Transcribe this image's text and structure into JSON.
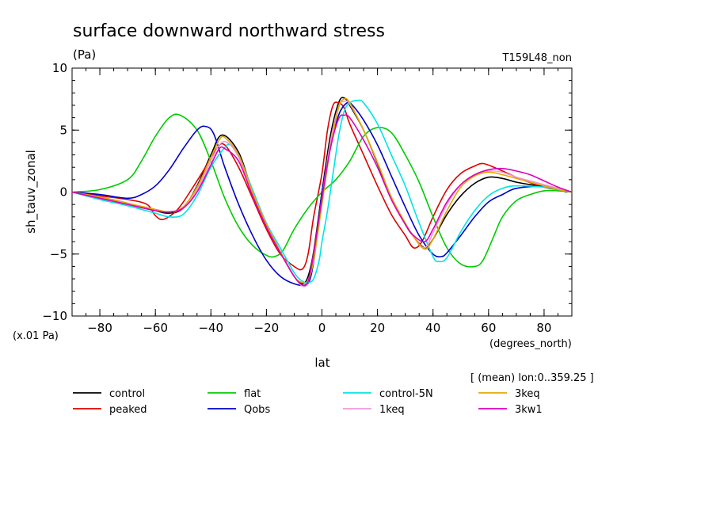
{
  "chart_data": {
    "type": "line",
    "title": "surface downward northward stress",
    "units_label": "(Pa)",
    "run_label": "T159L48_non",
    "ylabel": "sh_tauv_zonal",
    "xlabel": "lat",
    "x_units": "(degrees_north)",
    "y_scale_note": "(x.01 Pa)",
    "mean_note": "[ (mean) lon:0..359.25 ]",
    "xlim": [
      -90,
      90
    ],
    "ylim": [
      -10,
      10
    ],
    "xticks": [
      -80,
      -60,
      -40,
      -20,
      0,
      20,
      40,
      60,
      80
    ],
    "yticks": [
      -10,
      -5,
      0,
      5,
      10
    ],
    "series": [
      {
        "name": "control",
        "color": "#000000",
        "x": [
          -90,
          -80,
          -70,
          -60,
          -55,
          -50,
          -45,
          -40,
          -36,
          -30,
          -25,
          -20,
          -15,
          -10,
          -7,
          -5,
          -3,
          0,
          3,
          6,
          8,
          10,
          15,
          20,
          25,
          30,
          33,
          37,
          40,
          45,
          50,
          55,
          60,
          65,
          70,
          75,
          80,
          85,
          90
        ],
        "y": [
          0,
          -0.4,
          -0.9,
          -1.5,
          -1.7,
          -1.3,
          0.5,
          3.0,
          4.6,
          3.2,
          0,
          -2.6,
          -4.8,
          -6.8,
          -7.4,
          -6.8,
          -4.8,
          0,
          4.5,
          7.2,
          7.6,
          7.0,
          5.0,
          2.3,
          -0.5,
          -2.6,
          -3.6,
          -4.5,
          -3.8,
          -1.8,
          -0.3,
          0.7,
          1.2,
          1.1,
          0.8,
          0.6,
          0.4,
          0.2,
          0
        ]
      },
      {
        "name": "peaked",
        "color": "#dd0000",
        "x": [
          -90,
          -80,
          -70,
          -63,
          -60,
          -57,
          -52,
          -47,
          -42,
          -38,
          -35,
          -30,
          -25,
          -20,
          -15,
          -10,
          -7,
          -5,
          -3,
          0,
          2,
          4,
          6,
          8,
          10,
          15,
          20,
          25,
          30,
          33,
          36,
          40,
          45,
          50,
          55,
          58,
          62,
          67,
          72,
          80,
          85,
          90
        ],
        "y": [
          0,
          -0.3,
          -0.6,
          -1.0,
          -1.9,
          -2.2,
          -1.4,
          0.2,
          2.0,
          3.5,
          3.8,
          2.0,
          -0.5,
          -3.0,
          -5.0,
          -6.0,
          -6.2,
          -5.0,
          -2.0,
          1.5,
          5.0,
          7.0,
          7.2,
          6.8,
          5.5,
          3.0,
          0.5,
          -1.8,
          -3.5,
          -4.5,
          -4.0,
          -2.0,
          0.2,
          1.5,
          2.1,
          2.3,
          2.0,
          1.5,
          1.0,
          0.4,
          0.2,
          0
        ]
      },
      {
        "name": "flat",
        "color": "#00cc00",
        "x": [
          -90,
          -80,
          -70,
          -65,
          -60,
          -55,
          -51,
          -45,
          -40,
          -35,
          -30,
          -25,
          -20,
          -17,
          -14,
          -10,
          -5,
          0,
          5,
          10,
          15,
          20,
          25,
          30,
          35,
          40,
          45,
          50,
          55,
          58,
          62,
          65,
          70,
          75,
          80,
          85,
          90
        ],
        "y": [
          0,
          0.2,
          1.0,
          2.5,
          4.5,
          6.0,
          6.2,
          5.0,
          2.5,
          -0.5,
          -2.8,
          -4.3,
          -5.1,
          -5.2,
          -4.7,
          -3.0,
          -1.3,
          0,
          1.0,
          2.5,
          4.5,
          5.2,
          4.8,
          3.0,
          0.8,
          -2.0,
          -4.5,
          -5.8,
          -6.0,
          -5.5,
          -3.5,
          -2.0,
          -0.7,
          -0.2,
          0.1,
          0.1,
          0
        ]
      },
      {
        "name": "Qobs",
        "color": "#0000cc",
        "x": [
          -90,
          -80,
          -70,
          -65,
          -60,
          -55,
          -50,
          -45,
          -42,
          -39,
          -35,
          -30,
          -25,
          -20,
          -15,
          -10,
          -6,
          -4,
          -2,
          0,
          3,
          6,
          9,
          11,
          15,
          20,
          25,
          30,
          35,
          40,
          43,
          45,
          50,
          55,
          60,
          65,
          70,
          80,
          85,
          90
        ],
        "y": [
          0,
          -0.2,
          -0.5,
          -0.2,
          0.5,
          1.8,
          3.5,
          5.0,
          5.3,
          4.7,
          2.0,
          -1.0,
          -3.5,
          -5.5,
          -6.8,
          -7.4,
          -7.5,
          -6.8,
          -4.0,
          0,
          3.5,
          6.2,
          7.2,
          7.0,
          5.8,
          3.8,
          1.3,
          -1.2,
          -3.5,
          -5.0,
          -5.2,
          -4.9,
          -3.5,
          -2.0,
          -0.8,
          -0.2,
          0.3,
          0.5,
          0.3,
          0
        ]
      },
      {
        "name": "control-5N",
        "color": "#00e5e5",
        "x": [
          -90,
          -80,
          -70,
          -60,
          -55,
          -50,
          -45,
          -40,
          -35,
          -33,
          -30,
          -25,
          -20,
          -15,
          -10,
          -7,
          -5,
          -3,
          -1,
          0,
          2,
          4,
          6,
          8,
          10,
          13,
          15,
          20,
          25,
          30,
          35,
          40,
          42,
          45,
          50,
          55,
          60,
          65,
          70,
          80,
          85,
          90
        ],
        "y": [
          0,
          -0.6,
          -1.1,
          -1.7,
          -2.0,
          -1.8,
          -0.3,
          2.0,
          3.6,
          3.8,
          3.0,
          0.2,
          -2.5,
          -4.5,
          -6.5,
          -7.2,
          -7.3,
          -7.0,
          -5.5,
          -4.0,
          -1.5,
          1.5,
          4.5,
          6.5,
          7.2,
          7.4,
          7.2,
          5.5,
          3.0,
          0.5,
          -2.5,
          -5.2,
          -5.6,
          -5.3,
          -3.2,
          -1.5,
          -0.3,
          0.3,
          0.5,
          0.4,
          0.2,
          0
        ]
      },
      {
        "name": "1keq",
        "color": "#ee99dd",
        "x": [
          -90,
          -80,
          -70,
          -60,
          -55,
          -50,
          -45,
          -40,
          -37,
          -34,
          -30,
          -25,
          -20,
          -15,
          -10,
          -7,
          -5,
          -3,
          0,
          3,
          6,
          8,
          10,
          15,
          20,
          25,
          30,
          33,
          37,
          40,
          45,
          50,
          55,
          60,
          65,
          70,
          75,
          80,
          85,
          90
        ],
        "y": [
          0,
          -0.4,
          -0.9,
          -1.4,
          -1.6,
          -1.3,
          0.2,
          2.5,
          3.8,
          4.0,
          2.8,
          0,
          -2.6,
          -4.8,
          -6.8,
          -7.6,
          -7.2,
          -5.0,
          -0.5,
          4.0,
          6.9,
          7.3,
          7.1,
          5.0,
          2.4,
          -0.4,
          -2.5,
          -3.6,
          -4.5,
          -3.3,
          -1.0,
          0.6,
          1.4,
          1.7,
          1.6,
          1.2,
          0.9,
          0.6,
          0.3,
          0
        ]
      },
      {
        "name": "3keq",
        "color": "#e5a800",
        "x": [
          -90,
          -80,
          -70,
          -60,
          -55,
          -50,
          -45,
          -40,
          -37,
          -35,
          -30,
          -25,
          -20,
          -15,
          -10,
          -7,
          -5,
          -3,
          0,
          3,
          6,
          8,
          10,
          15,
          20,
          25,
          30,
          33,
          37,
          40,
          45,
          50,
          55,
          60,
          65,
          70,
          75,
          80,
          85,
          90
        ],
        "y": [
          0,
          -0.4,
          -0.9,
          -1.4,
          -1.6,
          -1.2,
          0.4,
          2.8,
          4.2,
          4.4,
          3.0,
          0,
          -2.6,
          -4.8,
          -6.8,
          -7.3,
          -7.2,
          -5.5,
          -1.0,
          3.5,
          6.8,
          7.5,
          7.2,
          5.0,
          2.4,
          -0.4,
          -2.5,
          -3.6,
          -4.6,
          -3.8,
          -1.5,
          0.4,
          1.3,
          1.6,
          1.4,
          1.1,
          0.8,
          0.5,
          0.2,
          0
        ]
      },
      {
        "name": "3kw1",
        "color": "#dd00bb",
        "x": [
          -90,
          -80,
          -70,
          -60,
          -55,
          -50,
          -45,
          -40,
          -37,
          -35,
          -30,
          -25,
          -20,
          -15,
          -10,
          -7,
          -5,
          -3,
          0,
          3,
          6,
          8,
          10,
          15,
          20,
          25,
          30,
          33,
          37,
          40,
          45,
          50,
          55,
          60,
          65,
          70,
          75,
          80,
          85,
          90
        ],
        "y": [
          0,
          -0.5,
          -1.0,
          -1.5,
          -1.6,
          -1.3,
          0,
          2.2,
          3.5,
          3.5,
          2.5,
          -0.3,
          -2.8,
          -4.9,
          -6.8,
          -7.5,
          -7.2,
          -5.0,
          -0.5,
          3.5,
          5.9,
          6.2,
          6.0,
          4.2,
          2.0,
          -0.6,
          -2.6,
          -3.5,
          -4.0,
          -3.0,
          -0.8,
          0.6,
          1.4,
          1.8,
          1.9,
          1.7,
          1.4,
          0.9,
          0.4,
          0
        ]
      }
    ]
  }
}
